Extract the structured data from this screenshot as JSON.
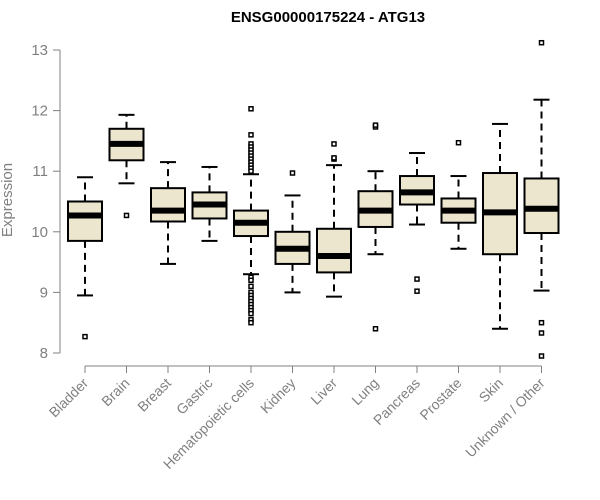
{
  "colors": {
    "box_fill": "#ede6cf",
    "box_stroke": "#000000",
    "axis": "#808080",
    "text": "#808080",
    "title": "#000000"
  },
  "chart_data": {
    "type": "boxplot",
    "title": "ENSG00000175224 - ATG13",
    "xlabel": "",
    "ylabel": "Expression",
    "ylim": [
      7.9,
      13.2
    ],
    "yticks": [
      8,
      9,
      10,
      11,
      12,
      13
    ],
    "grid": false,
    "categories": [
      "Bladder",
      "Brain",
      "Breast",
      "Gastric",
      "Hematopoietic cells",
      "Kidney",
      "Liver",
      "Lung",
      "Pancreas",
      "Prostate",
      "Skin",
      "Unknown / Other"
    ],
    "boxes": [
      {
        "whisker_low": 8.95,
        "q1": 9.85,
        "median": 10.27,
        "q3": 10.5,
        "whisker_high": 10.9,
        "outliers": [
          8.27
        ]
      },
      {
        "whisker_low": 10.8,
        "q1": 11.18,
        "median": 11.45,
        "q3": 11.7,
        "whisker_high": 11.93,
        "outliers": [
          10.27
        ]
      },
      {
        "whisker_low": 9.47,
        "q1": 10.17,
        "median": 10.35,
        "q3": 10.72,
        "whisker_high": 11.15,
        "outliers": []
      },
      {
        "whisker_low": 9.85,
        "q1": 10.22,
        "median": 10.45,
        "q3": 10.65,
        "whisker_high": 11.07,
        "outliers": []
      },
      {
        "whisker_low": 9.3,
        "q1": 9.93,
        "median": 10.15,
        "q3": 10.35,
        "whisker_high": 10.95,
        "outliers": [
          12.03,
          11.6,
          11.45,
          11.4,
          11.35,
          11.3,
          11.25,
          11.2,
          11.15,
          11.1,
          11.05,
          11.0,
          9.25,
          9.2,
          9.1,
          9.0,
          8.95,
          8.9,
          8.85,
          8.8,
          8.75,
          8.7,
          8.65,
          8.55,
          8.5
        ]
      },
      {
        "whisker_low": 9.0,
        "q1": 9.47,
        "median": 9.72,
        "q3": 10.0,
        "whisker_high": 10.6,
        "outliers": [
          10.97
        ]
      },
      {
        "whisker_low": 8.93,
        "q1": 9.33,
        "median": 9.6,
        "q3": 10.05,
        "whisker_high": 11.1,
        "outliers": [
          11.2,
          11.22,
          11.45
        ]
      },
      {
        "whisker_low": 9.63,
        "q1": 10.08,
        "median": 10.35,
        "q3": 10.67,
        "whisker_high": 11.0,
        "outliers": [
          8.4,
          11.73,
          11.76
        ]
      },
      {
        "whisker_low": 10.12,
        "q1": 10.45,
        "median": 10.65,
        "q3": 10.92,
        "whisker_high": 11.3,
        "outliers": [
          9.22,
          9.02
        ]
      },
      {
        "whisker_low": 9.72,
        "q1": 10.15,
        "median": 10.35,
        "q3": 10.55,
        "whisker_high": 10.92,
        "outliers": [
          11.47
        ]
      },
      {
        "whisker_low": 8.4,
        "q1": 9.63,
        "median": 10.32,
        "q3": 10.97,
        "whisker_high": 11.78,
        "outliers": []
      },
      {
        "whisker_low": 9.03,
        "q1": 9.98,
        "median": 10.38,
        "q3": 10.88,
        "whisker_high": 12.18,
        "outliers": [
          13.12,
          8.5,
          8.33,
          7.95
        ]
      }
    ]
  }
}
